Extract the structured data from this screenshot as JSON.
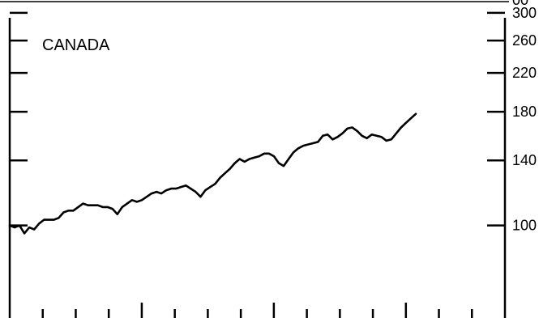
{
  "chart_data": {
    "type": "line",
    "title": "CANADA",
    "xlabel": "",
    "ylabel": "",
    "y_scale": "log",
    "ylim": [
      62,
      318
    ],
    "y_ticks": [
      {
        "value": 300,
        "label": "300"
      },
      {
        "value": 260,
        "label": "260"
      },
      {
        "value": 220,
        "label": "220"
      },
      {
        "value": 180,
        "label": "180"
      },
      {
        "value": 140,
        "label": "140"
      },
      {
        "value": 100,
        "label": "100"
      }
    ],
    "y_top_partial_label": "00",
    "x_minor_tick_count": 15,
    "x_major_tick_indices": [
      4,
      8,
      12
    ],
    "legend": "none",
    "grid": false,
    "series": [
      {
        "values": [
          100,
          99,
          100,
          96,
          99,
          98,
          101,
          103,
          103,
          103,
          104,
          107,
          108,
          108,
          110,
          112,
          111,
          111,
          111,
          110,
          110,
          109,
          106,
          110,
          112,
          114,
          113,
          114,
          116,
          118,
          119,
          118,
          120,
          121,
          121,
          122,
          123,
          121,
          119,
          116,
          120,
          122,
          124,
          128,
          131,
          134,
          138,
          141,
          139,
          141,
          142,
          143,
          145,
          145,
          143,
          138,
          136,
          141,
          146,
          149,
          151,
          152,
          153,
          154,
          159,
          160,
          156,
          158,
          161,
          165,
          166,
          163,
          159,
          157,
          160,
          159,
          158,
          155,
          156,
          161,
          166,
          170,
          174,
          178
        ]
      }
    ]
  }
}
